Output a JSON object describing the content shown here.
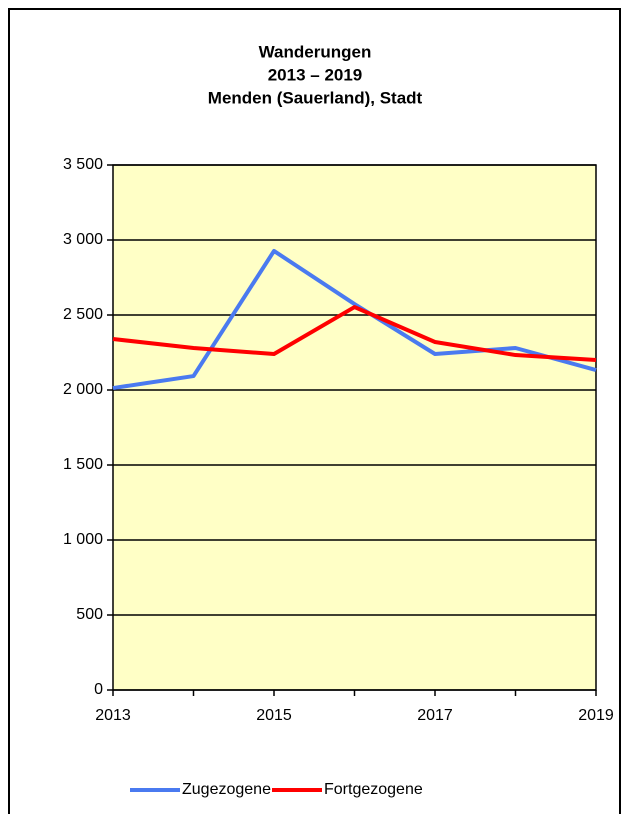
{
  "chart_data": {
    "type": "line",
    "title": [
      "Wanderungen",
      "2013 – 2019",
      "Menden (Sauerland), Stadt"
    ],
    "categories": [
      "2013",
      null,
      "2015",
      null,
      "2017",
      null,
      "2019"
    ],
    "series": [
      {
        "name": "Zugezogene",
        "color": "#4a7af0",
        "values": [
          2013,
          2093,
          2927,
          2573,
          2240,
          2280,
          2133
        ]
      },
      {
        "name": "Fortgezogene",
        "color": "#ff0000",
        "values": [
          2340,
          2280,
          2240,
          2553,
          2320,
          2233,
          2200
        ]
      }
    ],
    "ylim": [
      0,
      3500
    ],
    "yticks": [
      0,
      500,
      {
        "value": 1000,
        "label": "1 000"
      },
      {
        "value": 1500,
        "label": "1 500"
      },
      {
        "value": 2000,
        "label": "2 000"
      },
      {
        "value": 2500,
        "label": "2 500"
      },
      {
        "value": 3000,
        "label": "3 000"
      },
      {
        "value": 3500,
        "label": "3 500"
      }
    ],
    "grid": true,
    "background": "#ffffc6",
    "legend": "bottom"
  }
}
